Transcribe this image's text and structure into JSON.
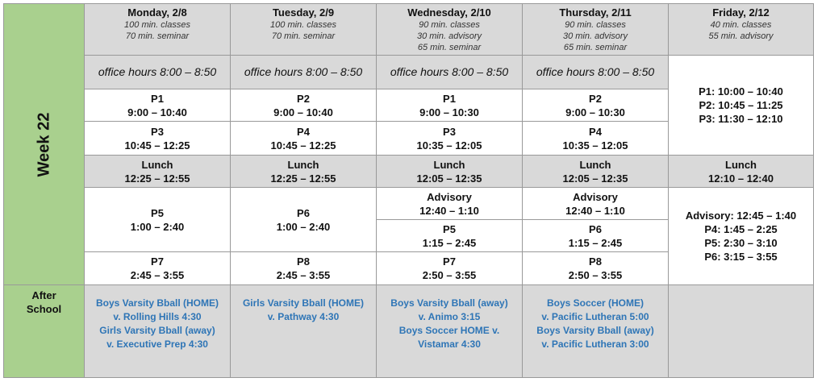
{
  "week_label": "Week 22",
  "after_school_label": [
    "After",
    "School"
  ],
  "days": [
    {
      "name": "Monday, 2/8",
      "notes": [
        "100 min. classes",
        "70 min. seminar"
      ],
      "office": "office hours 8:00 – 8:50",
      "blocks": [
        [
          "P1",
          "9:00 – 10:40"
        ],
        [
          "P3",
          "10:45 – 12:25"
        ],
        [
          "Lunch",
          "12:25 – 12:55"
        ],
        [
          "P5",
          "1:00 – 2:40"
        ],
        [
          "P7",
          "2:45 – 3:55"
        ]
      ],
      "after": [
        "Boys Varsity Bball (HOME)",
        "v. Rolling Hills 4:30",
        "Girls Varsity Bball (away)",
        "v. Executive Prep 4:30"
      ]
    },
    {
      "name": "Tuesday, 2/9",
      "notes": [
        "100 min. classes",
        "70 min. seminar"
      ],
      "office": "office hours 8:00 – 8:50",
      "blocks": [
        [
          "P2",
          "9:00 – 10:40"
        ],
        [
          "P4",
          "10:45 – 12:25"
        ],
        [
          "Lunch",
          "12:25 – 12:55"
        ],
        [
          "P6",
          "1:00 – 2:40"
        ],
        [
          "P8",
          "2:45 – 3:55"
        ]
      ],
      "after": [
        "Girls Varsity Bball (HOME)",
        "v. Pathway 4:30"
      ]
    },
    {
      "name": "Wednesday, 2/10",
      "notes": [
        "90 min. classes",
        "30 min. advisory",
        "65 min. seminar"
      ],
      "office": "office hours 8:00 – 8:50",
      "blocks": [
        [
          "P1",
          "9:00 – 10:30"
        ],
        [
          "P3",
          "10:35 – 12:05"
        ],
        [
          "Lunch",
          "12:05 – 12:35"
        ],
        [
          "Advisory",
          "12:40 – 1:10"
        ],
        [
          "P5",
          "1:15 – 2:45"
        ],
        [
          "P7",
          "2:50 – 3:55"
        ]
      ],
      "after": [
        "Boys Varsity Bball (away)",
        "v. Animo 3:15",
        "Boys Soccer HOME v.",
        "Vistamar 4:30"
      ]
    },
    {
      "name": "Thursday, 2/11",
      "notes": [
        "90 min. classes",
        "30 min. advisory",
        "65 min. seminar"
      ],
      "office": "office hours 8:00 – 8:50",
      "blocks": [
        [
          "P2",
          "9:00 – 10:30"
        ],
        [
          "P4",
          "10:35 – 12:05"
        ],
        [
          "Lunch",
          "12:05 – 12:35"
        ],
        [
          "Advisory",
          "12:40 – 1:10"
        ],
        [
          "P6",
          "1:15 – 2:45"
        ],
        [
          "P8",
          "2:50 – 3:55"
        ]
      ],
      "after": [
        "Boys Soccer (HOME)",
        "v. Pacific Lutheran 5:00",
        "Boys Varsity Bball (away)",
        "v. Pacific Lutheran 3:00"
      ]
    },
    {
      "name": "Friday, 2/12",
      "notes": [
        "40 min. classes",
        "55 min. advisory"
      ],
      "morning": [
        "P1: 10:00 – 10:40",
        "P2: 10:45 – 11:25",
        "P3: 11:30 – 12:10"
      ],
      "lunch": [
        "Lunch",
        "12:10 – 12:40"
      ],
      "afternoon": [
        "Advisory: 12:45 – 1:40",
        "P4: 1:45 – 2:25",
        "P5: 2:30 – 3:10",
        "P6: 3:15 – 3:55"
      ]
    }
  ]
}
